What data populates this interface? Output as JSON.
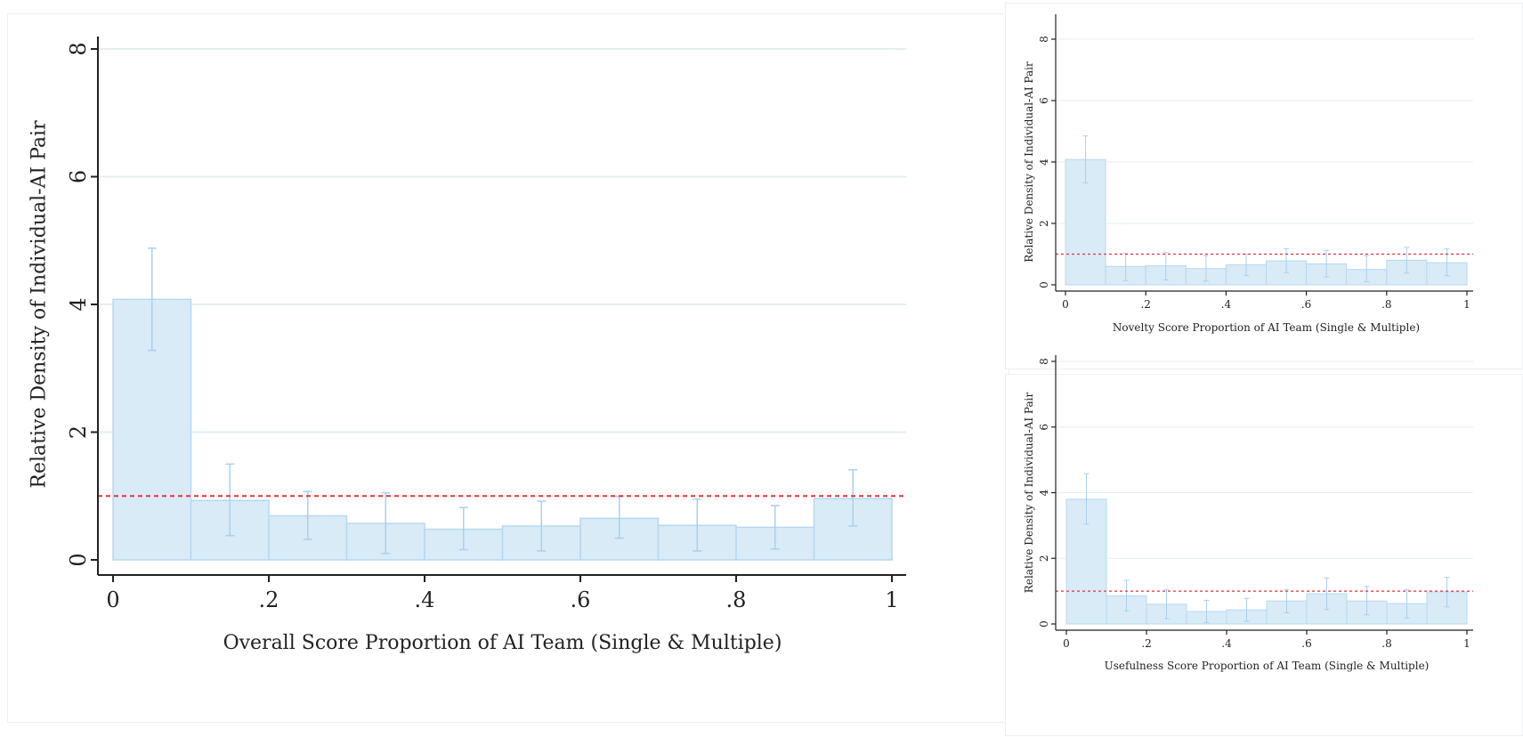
{
  "chart_data": [
    {
      "id": "overall",
      "type": "histogram",
      "xlabel": "Overall Score Proportion of AI Team (Single & Multiple)",
      "ylabel": "Relative Density of Individual-AI Pair",
      "xlim": [
        0,
        1
      ],
      "ylim": [
        0,
        8
      ],
      "xticks": [
        0,
        0.2,
        0.4,
        0.6,
        0.8,
        1
      ],
      "xtick_labels": [
        "0",
        ".2",
        ".4",
        ".6",
        ".8",
        "1"
      ],
      "yticks": [
        0,
        2,
        4,
        6,
        8
      ],
      "ytick_labels": [
        "0",
        "2",
        "4",
        "6",
        "8"
      ],
      "bin_edges": [
        0,
        0.1,
        0.2,
        0.3,
        0.4,
        0.5,
        0.6,
        0.7,
        0.8,
        0.9,
        1
      ],
      "values": [
        4.08,
        0.93,
        0.69,
        0.57,
        0.48,
        0.53,
        0.65,
        0.54,
        0.51,
        0.96
      ],
      "ci_low": [
        3.28,
        0.38,
        0.32,
        0.1,
        0.16,
        0.14,
        0.34,
        0.14,
        0.17,
        0.53
      ],
      "ci_high": [
        4.88,
        1.5,
        1.07,
        1.05,
        0.82,
        0.92,
        0.99,
        0.95,
        0.85,
        1.41
      ],
      "reference_line": 1.0,
      "grid": true,
      "bar_color": "#d9ebf7",
      "bar_edge_color": "#b6d8ef",
      "errorbar_color": "#a9d0ec",
      "reference_color": "#e8323a"
    },
    {
      "id": "novelty",
      "type": "histogram",
      "xlabel": "Novelty Score Proportion of AI Team (Single & Multiple)",
      "ylabel": "Relative Density of  Individual-AI Pair",
      "xlim": [
        0,
        1
      ],
      "ylim": [
        0,
        8
      ],
      "xticks": [
        0,
        0.2,
        0.4,
        0.6,
        0.8,
        1
      ],
      "xtick_labels": [
        "0",
        ".2",
        ".4",
        ".6",
        ".8",
        "1"
      ],
      "yticks": [
        0,
        2,
        4,
        6,
        8
      ],
      "ytick_labels": [
        "0",
        "2",
        "4",
        "6",
        "8"
      ],
      "bin_edges": [
        0,
        0.1,
        0.2,
        0.3,
        0.4,
        0.5,
        0.6,
        0.7,
        0.8,
        0.9,
        1
      ],
      "values": [
        4.08,
        0.6,
        0.62,
        0.53,
        0.65,
        0.78,
        0.68,
        0.5,
        0.8,
        0.72
      ],
      "ci_low": [
        3.32,
        0.14,
        0.16,
        0.12,
        0.3,
        0.4,
        0.26,
        0.1,
        0.38,
        0.3
      ],
      "ci_high": [
        4.85,
        1.02,
        1.05,
        0.95,
        1.0,
        1.18,
        1.12,
        0.95,
        1.22,
        1.17
      ],
      "reference_line": 1.0,
      "grid": true,
      "bar_color": "#d9ebf7",
      "bar_edge_color": "#b6d8ef",
      "errorbar_color": "#a9d0ec",
      "reference_color": "#e8323a"
    },
    {
      "id": "usefulness",
      "type": "histogram",
      "xlabel": "Usefulness Score Proportion of AI Team (Single & Multiple)",
      "ylabel": "Relative Density of  Individual-AI Pair",
      "xlim": [
        0,
        1
      ],
      "ylim": [
        0,
        8
      ],
      "xticks": [
        0,
        0.2,
        0.4,
        0.6,
        0.8,
        1
      ],
      "xtick_labels": [
        "0",
        ".2",
        ".4",
        ".6",
        ".8",
        "1"
      ],
      "yticks": [
        0,
        2,
        4,
        6,
        8
      ],
      "ytick_labels": [
        "0",
        "2",
        "4",
        "6",
        "8"
      ],
      "bin_edges": [
        0,
        0.1,
        0.2,
        0.3,
        0.4,
        0.5,
        0.6,
        0.7,
        0.8,
        0.9,
        1
      ],
      "values": [
        3.8,
        0.86,
        0.6,
        0.38,
        0.43,
        0.7,
        0.92,
        0.7,
        0.62,
        0.98
      ],
      "ci_low": [
        3.04,
        0.4,
        0.16,
        0.04,
        0.08,
        0.34,
        0.44,
        0.28,
        0.18,
        0.52
      ],
      "ci_high": [
        4.58,
        1.33,
        1.05,
        0.72,
        0.78,
        1.05,
        1.4,
        1.14,
        1.05,
        1.42
      ],
      "reference_line": 1.0,
      "grid": true,
      "bar_color": "#d9ebf7",
      "bar_edge_color": "#b6d8ef",
      "errorbar_color": "#a9d0ec",
      "reference_color": "#e8323a"
    }
  ]
}
